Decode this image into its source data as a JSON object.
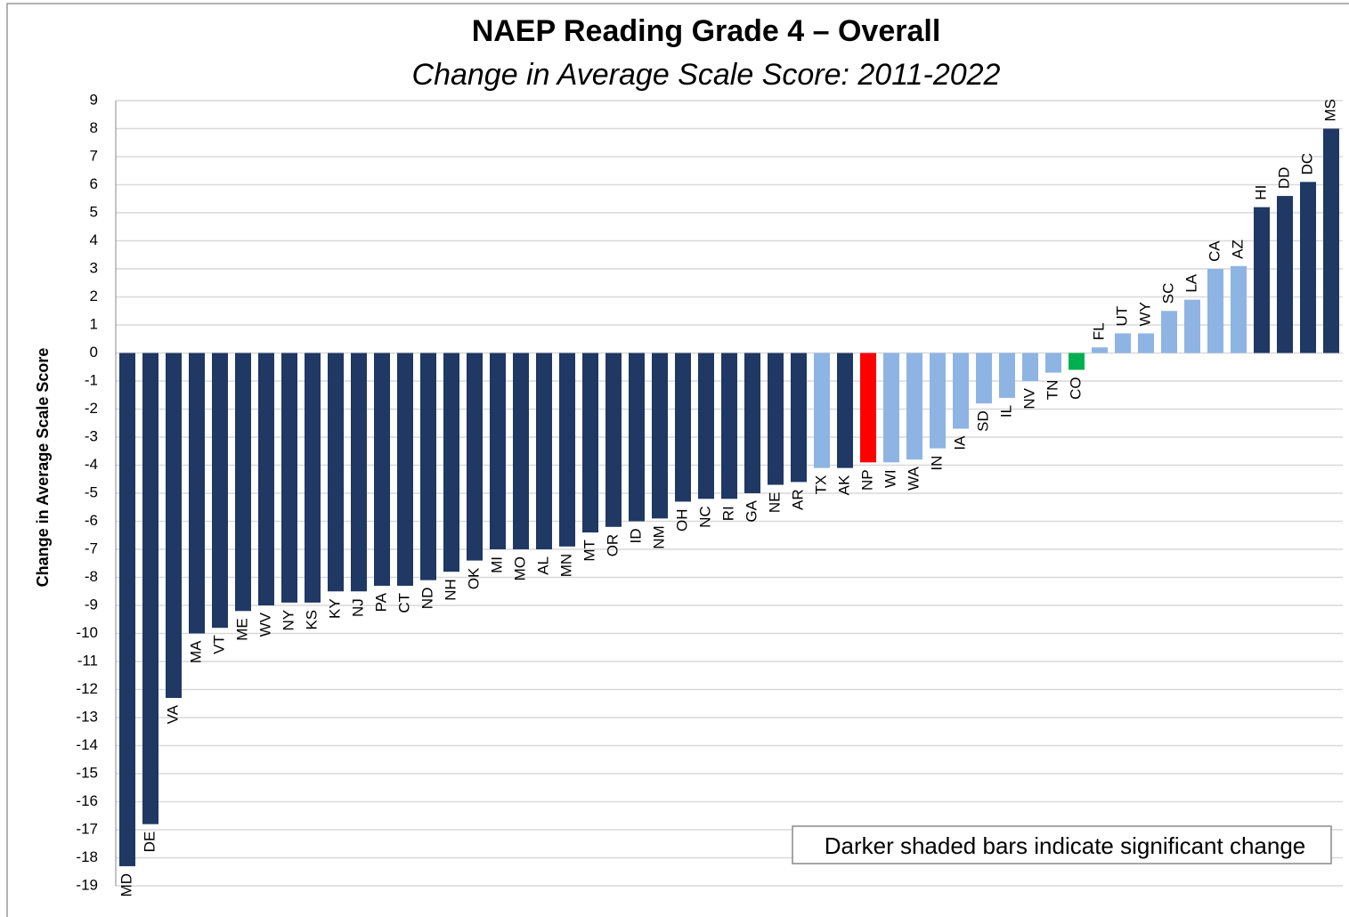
{
  "chart_data": {
    "type": "bar",
    "title": "NAEP Reading Grade 4 – Overall",
    "subtitle": "Change in Average Scale Score: 2011-2022",
    "y_label": "Change in Average Scale Score",
    "annotation": "Darker shaded bars indicate significant change",
    "categories": [
      "MD",
      "DE",
      "VA",
      "MA",
      "VT",
      "ME",
      "WV",
      "NY",
      "KS",
      "KY",
      "NJ",
      "PA",
      "CT",
      "ND",
      "NH",
      "OK",
      "MI",
      "MO",
      "AL",
      "MN",
      "MT",
      "OR",
      "ID",
      "NM",
      "OH",
      "NC",
      "RI",
      "GA",
      "NE",
      "AR",
      "TX",
      "AK",
      "NP",
      "WI",
      "WA",
      "IN",
      "IA",
      "SD",
      "IL",
      "NV",
      "TN",
      "CO",
      "FL",
      "UT",
      "WY",
      "SC",
      "LA",
      "CA",
      "AZ",
      "HI",
      "DD",
      "DC",
      "MS"
    ],
    "values": [
      -18.3,
      -16.8,
      -12.3,
      -10.0,
      -9.8,
      -9.2,
      -9.0,
      -8.9,
      -8.9,
      -8.5,
      -8.5,
      -8.3,
      -8.3,
      -8.1,
      -7.8,
      -7.4,
      -7.0,
      -7.0,
      -7.0,
      -6.9,
      -6.4,
      -6.2,
      -6.0,
      -5.9,
      -5.3,
      -5.2,
      -5.2,
      -5.0,
      -4.7,
      -4.6,
      -4.1,
      -4.1,
      -3.9,
      -3.9,
      -3.8,
      -3.4,
      -2.7,
      -1.8,
      -1.6,
      -1.0,
      -0.7,
      -0.6,
      0.2,
      0.7,
      0.7,
      1.5,
      1.9,
      3.0,
      3.1,
      5.2,
      5.6,
      6.1,
      8.0
    ],
    "colors": [
      "#1f3864",
      "#1f3864",
      "#1f3864",
      "#1f3864",
      "#1f3864",
      "#1f3864",
      "#1f3864",
      "#1f3864",
      "#1f3864",
      "#1f3864",
      "#1f3864",
      "#1f3864",
      "#1f3864",
      "#1f3864",
      "#1f3864",
      "#1f3864",
      "#1f3864",
      "#1f3864",
      "#1f3864",
      "#1f3864",
      "#1f3864",
      "#1f3864",
      "#1f3864",
      "#1f3864",
      "#1f3864",
      "#1f3864",
      "#1f3864",
      "#1f3864",
      "#1f3864",
      "#1f3864",
      "#8eb4e3",
      "#1f3864",
      "#ff0000",
      "#8eb4e3",
      "#8eb4e3",
      "#8eb4e3",
      "#8eb4e3",
      "#8eb4e3",
      "#8eb4e3",
      "#8eb4e3",
      "#8eb4e3",
      "#00b050",
      "#8eb4e3",
      "#8eb4e3",
      "#8eb4e3",
      "#8eb4e3",
      "#8eb4e3",
      "#8eb4e3",
      "#8eb4e3",
      "#1f3864",
      "#1f3864",
      "#1f3864",
      "#1f3864"
    ],
    "ylim": [
      -19,
      9
    ],
    "yticks": [
      -19,
      -18,
      -17,
      -16,
      -15,
      -14,
      -13,
      -12,
      -11,
      -10,
      -9,
      -8,
      -7,
      -6,
      -5,
      -4,
      -3,
      -2,
      -1,
      0,
      1,
      2,
      3,
      4,
      5,
      6,
      7,
      8,
      9
    ],
    "grid": true
  }
}
